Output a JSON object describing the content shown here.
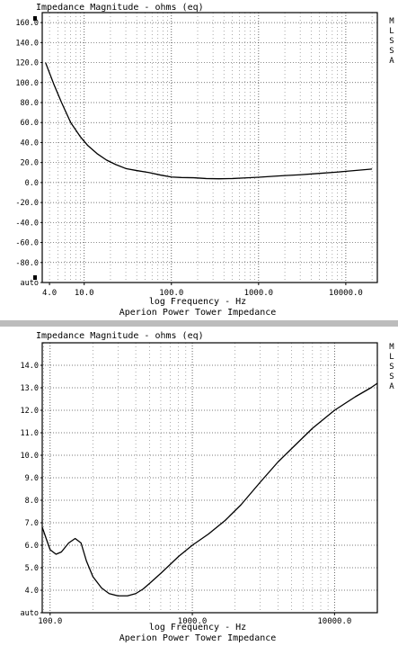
{
  "chart_data": [
    {
      "type": "line",
      "title": "Impedance Magnitude - ohms (eq)",
      "xlabel": "log Frequency - Hz",
      "subtitle": "Aperion Power Tower Impedance",
      "x_scale": "log",
      "xlim": [
        3.3,
        23000
      ],
      "ylim": [
        -100,
        170
      ],
      "y_ticks": [
        {
          "value": 160,
          "label": "160.0"
        },
        {
          "value": 140,
          "label": "140.0"
        },
        {
          "value": 120,
          "label": "120.0"
        },
        {
          "value": 100,
          "label": "100.0"
        },
        {
          "value": 80,
          "label": "80.0"
        },
        {
          "value": 60,
          "label": "60.0"
        },
        {
          "value": 40,
          "label": "40.0"
        },
        {
          "value": 20,
          "label": "20.0"
        },
        {
          "value": 0,
          "label": "0.0"
        },
        {
          "value": -20,
          "label": "-20.0"
        },
        {
          "value": -40,
          "label": "-40.0"
        },
        {
          "value": -60,
          "label": "-60.0"
        },
        {
          "value": -80,
          "label": "-80.0"
        },
        {
          "value": -100,
          "label": "auto"
        }
      ],
      "x_ticks": [
        {
          "value": 4,
          "label": "4.0"
        },
        {
          "value": 10,
          "label": "10.0"
        },
        {
          "value": 100,
          "label": "100.0"
        },
        {
          "value": 1000,
          "label": "1000.0"
        },
        {
          "value": 10000,
          "label": "10000.0"
        }
      ],
      "side_label": [
        "M",
        "L",
        "S",
        "S",
        "A"
      ],
      "grid": true,
      "series": [
        {
          "color": "#000000",
          "x": [
            3.6,
            4.5,
            5.5,
            7,
            9,
            11,
            14,
            18,
            23,
            30,
            40,
            55,
            75,
            100,
            130,
            180,
            250,
            350,
            500,
            700,
            1000,
            1500,
            2000,
            3000,
            5000,
            8000,
            12000,
            20000
          ],
          "y": [
            120,
            98,
            80,
            60,
            46,
            37,
            29,
            22.5,
            18,
            14,
            12,
            10,
            7.5,
            5.5,
            5,
            4.8,
            4,
            3.8,
            4,
            4.6,
            5.3,
            6.3,
            7,
            7.8,
            9.2,
            10.5,
            11.8,
            13.5
          ]
        }
      ]
    },
    {
      "type": "line",
      "title": "Impedance Magnitude - ohms (eq)",
      "xlabel": "log Frequency - Hz",
      "subtitle": "Aperion Power Tower Impedance",
      "x_scale": "log",
      "xlim": [
        88,
        20000
      ],
      "ylim": [
        3.0,
        15.0
      ],
      "y_ticks": [
        {
          "value": 14,
          "label": "14.0"
        },
        {
          "value": 13,
          "label": "13.0"
        },
        {
          "value": 12,
          "label": "12.0"
        },
        {
          "value": 11,
          "label": "11.0"
        },
        {
          "value": 10,
          "label": "10.0"
        },
        {
          "value": 9,
          "label": "9.0"
        },
        {
          "value": 8,
          "label": "8.0"
        },
        {
          "value": 7,
          "label": "7.0"
        },
        {
          "value": 6,
          "label": "6.0"
        },
        {
          "value": 5,
          "label": "5.0"
        },
        {
          "value": 4,
          "label": "4.0"
        },
        {
          "value": 3,
          "label": "auto"
        }
      ],
      "x_ticks": [
        {
          "value": 100,
          "label": "100.0"
        },
        {
          "value": 1000,
          "label": "1000.0"
        },
        {
          "value": 10000,
          "label": "10000.0"
        }
      ],
      "side_label": [
        "M",
        "L",
        "S",
        "S",
        "A"
      ],
      "grid": true,
      "series": [
        {
          "color": "#000000",
          "x": [
            88,
            95,
            100,
            110,
            120,
            135,
            150,
            165,
            180,
            200,
            230,
            260,
            300,
            350,
            400,
            450,
            500,
            600,
            700,
            800,
            1000,
            1300,
            1700,
            2200,
            3000,
            4000,
            5000,
            7000,
            10000,
            14000,
            18000,
            20000
          ],
          "y": [
            6.8,
            6.2,
            5.8,
            5.6,
            5.7,
            6.1,
            6.3,
            6.1,
            5.3,
            4.6,
            4.1,
            3.85,
            3.75,
            3.75,
            3.85,
            4.05,
            4.3,
            4.75,
            5.15,
            5.5,
            6.0,
            6.5,
            7.1,
            7.8,
            8.8,
            9.7,
            10.3,
            11.2,
            12.0,
            12.6,
            13.0,
            13.2
          ]
        }
      ]
    }
  ]
}
